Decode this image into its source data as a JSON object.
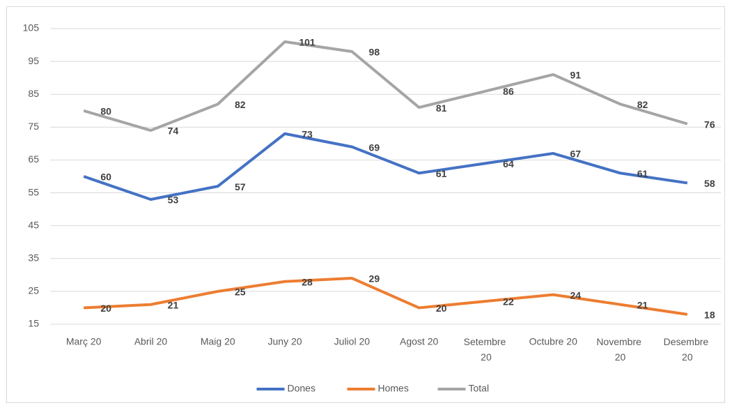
{
  "chart_data": {
    "type": "line",
    "categories": [
      "Març 20",
      "Abril 20",
      "Maig 20",
      "Juny 20",
      "Juliol 20",
      "Agost 20",
      "Setembre 20",
      "Octubre 20",
      "Novembre 20",
      "Desembre 20"
    ],
    "series": [
      {
        "name": "Dones",
        "color": "#4472c4",
        "values": [
          60,
          53,
          57,
          73,
          69,
          61,
          64,
          67,
          61,
          58
        ]
      },
      {
        "name": "Homes",
        "color": "#ed7d31",
        "values": [
          20,
          21,
          25,
          28,
          29,
          20,
          22,
          24,
          21,
          18
        ]
      },
      {
        "name": "Total",
        "color": "#a5a5a5",
        "values": [
          80,
          74,
          82,
          101,
          98,
          81,
          86,
          91,
          82,
          76
        ]
      }
    ],
    "ylim": [
      15,
      105
    ],
    "yticks": [
      15,
      25,
      35,
      45,
      55,
      65,
      75,
      85,
      95,
      105
    ],
    "grid": true,
    "legend": "bottom"
  }
}
